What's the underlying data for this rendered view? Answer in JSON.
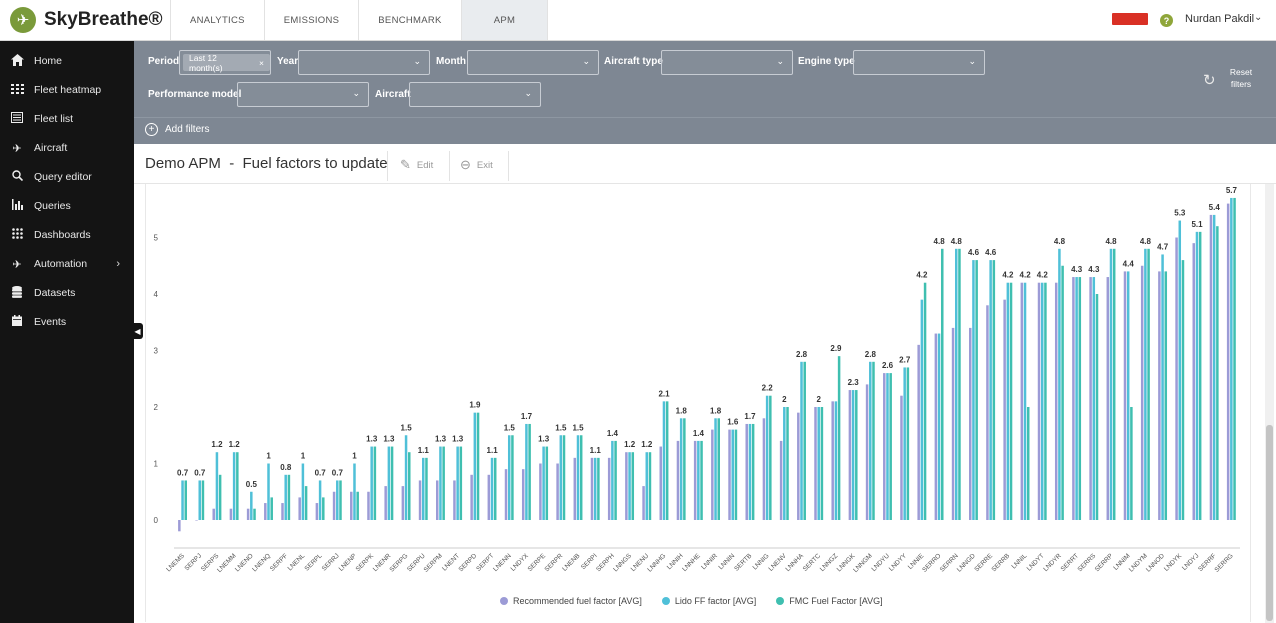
{
  "app": {
    "brand": "SkyBreathe®",
    "logo_icon": "plane-icon"
  },
  "tabs": [
    {
      "label": "ANALYTICS",
      "active": false
    },
    {
      "label": "EMISSIONS",
      "active": false
    },
    {
      "label": "BENCHMARK",
      "active": false
    },
    {
      "label": "APM",
      "active": true
    }
  ],
  "user": {
    "name": "Nurdan Pakdil",
    "help_symbol": "?"
  },
  "sidebar": {
    "items": [
      {
        "label": "Home",
        "icon": "home-icon"
      },
      {
        "label": "Fleet heatmap",
        "icon": "grid-icon"
      },
      {
        "label": "Fleet list",
        "icon": "list-icon"
      },
      {
        "label": "Aircraft",
        "icon": "plane-icon"
      },
      {
        "label": "Query editor",
        "icon": "search-icon"
      },
      {
        "label": "Queries",
        "icon": "bar-chart-icon"
      },
      {
        "label": "Dashboards",
        "icon": "dashboard-grid-icon"
      },
      {
        "label": "Automation",
        "icon": "automation-plane-icon"
      },
      {
        "label": "Datasets",
        "icon": "database-icon"
      },
      {
        "label": "Events",
        "icon": "calendar-icon"
      }
    ]
  },
  "filters": {
    "period_label": "Period",
    "period_value": "Last 12 month(s)",
    "year_label": "Year",
    "month_label": "Month",
    "aircraft_type_label": "Aircraft type",
    "engine_type_label": "Engine type",
    "performance_model_label": "Performance model",
    "aircraft_label": "Aircraft",
    "reset_line1": "Reset",
    "reset_line2": "filters",
    "add_filters": "Add filters"
  },
  "page": {
    "title": "Demo APM  -  Fuel factors to update",
    "edit_label": "Edit",
    "exit_label": "Exit"
  },
  "colors": {
    "recommended": "#9c9bd6",
    "lido": "#4fc0d8",
    "fmc": "#3fbfb0"
  },
  "chart_data": {
    "type": "bar",
    "ylim": [
      -0.3,
      5.8
    ],
    "yticks": [
      0,
      1,
      2,
      3,
      4,
      5
    ],
    "grid": false,
    "legend_position": "bottom",
    "categories": [
      "LNEMS",
      "SERPJ",
      "SERPS",
      "LNEMM",
      "LNENO",
      "LNENQ",
      "SERPF",
      "LNENL",
      "SERPL",
      "SERRJ",
      "LNENP",
      "SERPK",
      "LNENR",
      "SERPG",
      "SERPU",
      "SERPM",
      "LNENT",
      "SERPD",
      "SERPT",
      "LNENN",
      "LNDYX",
      "SERPE",
      "SERPR",
      "LNENB",
      "SERPI",
      "SERPH",
      "LNNGS",
      "LNENU",
      "LNNHG",
      "LNNIH",
      "LNNHE",
      "LNNIR",
      "LNNIN",
      "SERTB",
      "LNNIG",
      "LNENV",
      "LNNHA",
      "SERTC",
      "LNNGZ",
      "LNNGK",
      "LNNGM",
      "LNDYU",
      "LNDYY",
      "LNNIE",
      "SERRO",
      "SERRN",
      "LNNGD",
      "SERRE",
      "SERRB",
      "LNNIL",
      "LNDYT",
      "LNDYR",
      "SERRT",
      "SERRS",
      "SERRP",
      "LNNIM",
      "LNDYM",
      "LNNOD",
      "LNDYK",
      "LNDYJ",
      "SERRF",
      "SERRG"
    ],
    "series": [
      {
        "name": "Recommended fuel factor [AVG]",
        "values": [
          -0.2,
          0,
          0.2,
          0.2,
          0.2,
          0.3,
          0.3,
          0.4,
          0.3,
          0.5,
          0.5,
          0.5,
          0.6,
          0.6,
          0.7,
          0.7,
          0.7,
          0.8,
          0.8,
          0.9,
          0.9,
          1,
          1,
          1.1,
          1.1,
          1.1,
          1.2,
          0.6,
          1.3,
          1.4,
          1.4,
          1.6,
          1.6,
          1.7,
          1.8,
          1.4,
          1.9,
          2,
          2.1,
          2.3,
          2.4,
          2.6,
          2.2,
          3.1,
          3.3,
          3.4,
          3.4,
          3.8,
          3.9,
          4.2,
          4.2,
          4.2,
          4.3,
          4.3,
          4.3,
          4.4,
          4.5,
          4.4,
          5,
          4.9,
          5.4,
          5.6
        ]
      },
      {
        "name": "Lido FF factor [AVG]",
        "values": [
          0.7,
          0.7,
          1.2,
          1.2,
          0.5,
          1,
          0.8,
          1,
          0.7,
          0.7,
          1,
          1.3,
          1.3,
          1.5,
          1.1,
          1.3,
          1.3,
          1.9,
          1.1,
          1.5,
          1.7,
          1.3,
          1.5,
          1.5,
          1.1,
          1.4,
          1.2,
          1.2,
          2.1,
          1.8,
          1.4,
          1.8,
          1.6,
          1.7,
          2.2,
          2,
          2.8,
          2,
          2.1,
          2.3,
          2.8,
          2.6,
          2.7,
          3.9,
          3.3,
          4.8,
          4.6,
          4.6,
          4.2,
          4.2,
          4.2,
          4.8,
          4.3,
          4.3,
          4.8,
          4.4,
          4.8,
          4.7,
          5.3,
          5.1,
          5.4,
          5.7
        ]
      },
      {
        "name": "FMC Fuel Factor [AVG]",
        "values": [
          0.7,
          0.7,
          0.8,
          1.2,
          0.2,
          0.4,
          0.8,
          0.6,
          0.4,
          0.7,
          0.5,
          1.3,
          1.3,
          1.2,
          1.1,
          1.3,
          1.3,
          1.9,
          1.1,
          1.5,
          1.7,
          1.3,
          1.5,
          1.5,
          1.1,
          1.4,
          1.2,
          1.2,
          2.1,
          1.8,
          1.4,
          1.8,
          1.6,
          1.7,
          2.2,
          2,
          2.8,
          2,
          2.9,
          2.3,
          2.8,
          2.6,
          2.7,
          4.2,
          4.8,
          4.8,
          4.6,
          4.6,
          4.2,
          2,
          4.2,
          4.5,
          4.3,
          4,
          4.8,
          2,
          4.8,
          4.4,
          4.6,
          5.1,
          5.2,
          5.7
        ]
      }
    ],
    "label_values": [
      "0.7",
      "0.7",
      "1.2",
      "1.2",
      "0.5",
      "1",
      "0.8",
      "1",
      "0.7",
      "0.7",
      "1",
      "1.3",
      "1.3",
      "1.5",
      "1.1",
      "1.3",
      "1.3",
      "1.9",
      "1.1",
      "1.5",
      "1.7",
      "1.3",
      "1.5",
      "1.5",
      "1.1",
      "1.4",
      "1.2",
      "1.2",
      "2.1",
      "1.8",
      "1.4",
      "1.8",
      "1.6",
      "1.7",
      "2.2",
      "2",
      "2.8",
      "2",
      "2.9",
      "2.3",
      "2.8",
      "2.6",
      "2.7",
      "4.2",
      "4.8",
      "4.8",
      "4.6",
      "4.6",
      "4.2",
      "4.2",
      "4.2",
      "4.8",
      "4.3",
      "4.3",
      "4.8",
      "4.4",
      "4.8",
      "4.7",
      "5.3",
      "5.1",
      "5.4",
      "5.7"
    ]
  }
}
